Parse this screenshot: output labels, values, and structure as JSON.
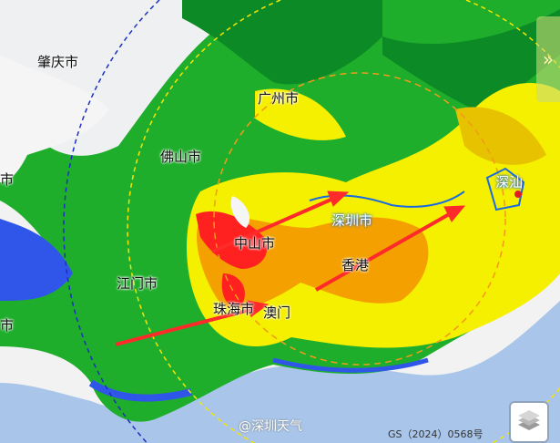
{
  "map": {
    "labels": {
      "zhaoqing": "肇庆市",
      "guangzhou": "广州市",
      "foshan": "佛山市",
      "left_top_partial": "市",
      "zhongshan": "中山市",
      "shenzhen": "深圳市",
      "jiangmen": "江门市",
      "hongkong": "香港",
      "zhuhai": "珠海市",
      "macau": "澳门",
      "shenshan": "深汕",
      "left_bottom_partial": "市"
    },
    "watermark": "@深圳天气",
    "approval_number": "GS（2024）0568号",
    "colors": {
      "sea": "#a9c6ea",
      "rain_light": "#00c000",
      "rain_mid": "#ffff00",
      "rain_heavy": "#ff8c00",
      "rain_severe": "#ff2020",
      "arrow": "#ff2a2a"
    }
  },
  "controls": {
    "layers_icon": "layers-icon",
    "expand_icon": "double-chevron-right-icon"
  }
}
